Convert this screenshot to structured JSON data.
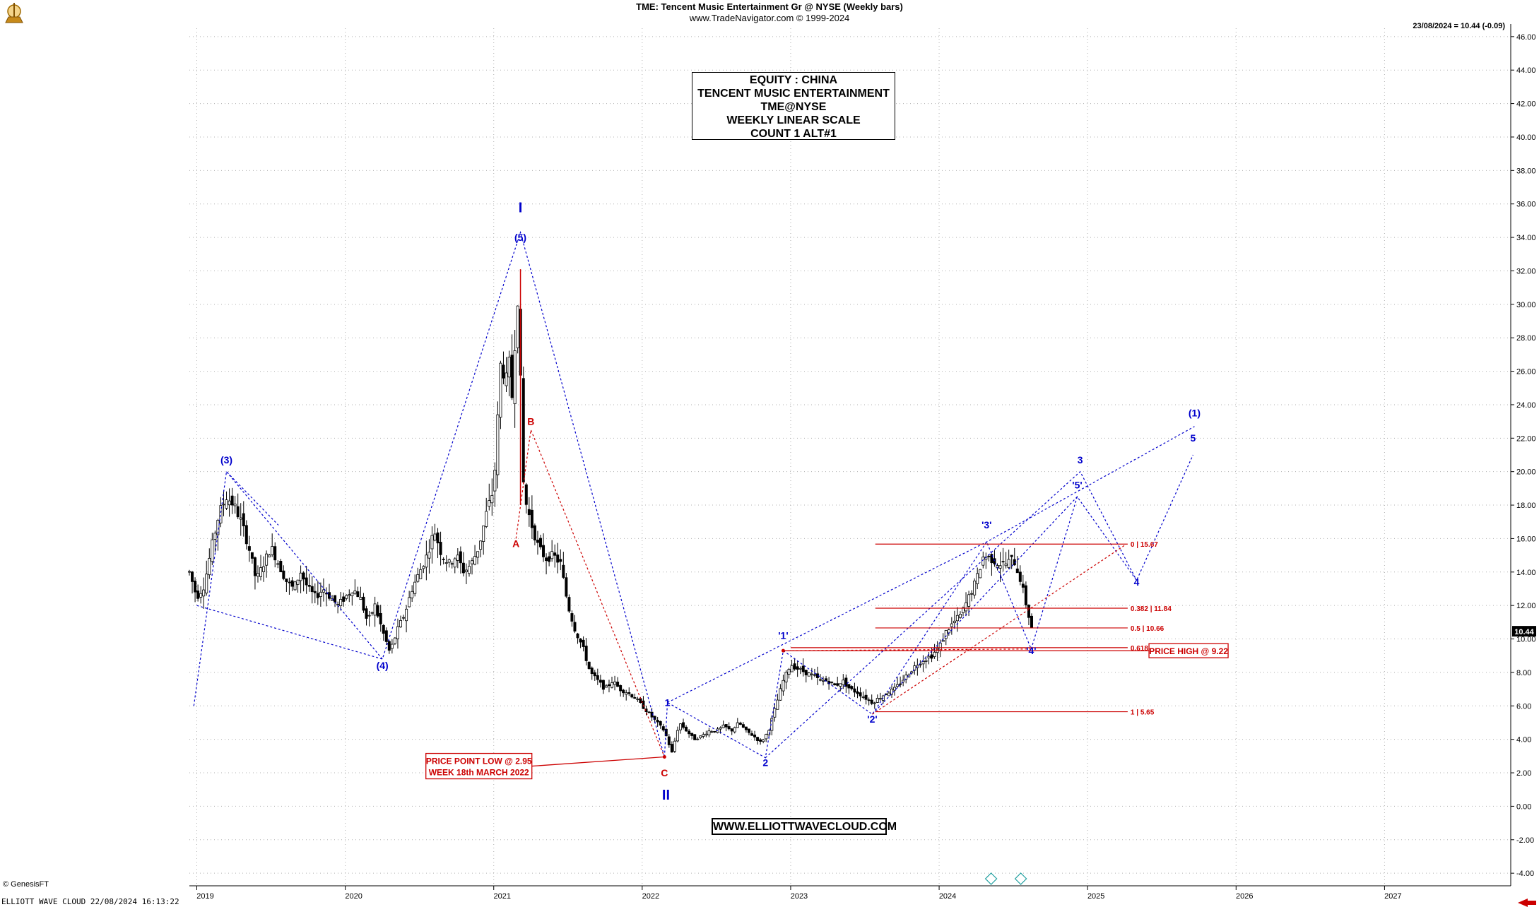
{
  "header": {
    "title": "TME:  Tencent Music Entertainment Gr @ NYSE  (Weekly bars)",
    "subtitle": "www.TradeNavigator.com © 1999-2024",
    "last_value": "23/08/2024 = 10.44 (-0.09)",
    "last_price_tag": "10.44"
  },
  "info_box": {
    "lines": [
      "EQUITY : CHINA",
      "TENCENT MUSIC ENTERTAINMENT",
      "TME@NYSE",
      "WEEKLY LINEAR SCALE",
      "COUNT 1 ALT#1"
    ]
  },
  "website": "WWW.ELLIOTTWAVECLOUD.COM",
  "footer": {
    "vendor": "© GenesisFT",
    "stamp": "ELLIOTT WAVE CLOUD  22/08/2024 16:13:22"
  },
  "colors": {
    "candle": "#000000",
    "wave_blue": "#0000cc",
    "wave_red": "#cc0000",
    "grid": "#b0b0b0",
    "fib": "#cc0000"
  },
  "chart_data": {
    "type": "candlestick",
    "x_ticks": [
      "2019",
      "2020",
      "2021",
      "2022",
      "2023",
      "2024",
      "2025",
      "2026",
      "2027"
    ],
    "y_ticks": [
      "46.00",
      "44.00",
      "42.00",
      "40.00",
      "38.00",
      "36.00",
      "34.00",
      "32.00",
      "30.00",
      "28.00",
      "26.00",
      "24.00",
      "22.00",
      "20.00",
      "18.00",
      "16.00",
      "14.00",
      "12.00",
      "10.00",
      "8.00",
      "6.00",
      "4.00",
      "2.00",
      "0.00",
      "-2.00",
      "-4.00"
    ],
    "ylim": [
      -4.5,
      46.5
    ],
    "xlim": [
      2018.95,
      2027.85
    ],
    "grid": true,
    "price_path": [
      [
        2018.95,
        14.0
      ],
      [
        2019.0,
        12.5
      ],
      [
        2019.05,
        13.2
      ],
      [
        2019.1,
        15.5
      ],
      [
        2019.15,
        17.5
      ],
      [
        2019.2,
        18.5
      ],
      [
        2019.25,
        18.0
      ],
      [
        2019.3,
        17.0
      ],
      [
        2019.35,
        15.5
      ],
      [
        2019.4,
        13.5
      ],
      [
        2019.45,
        14.5
      ],
      [
        2019.5,
        15.5
      ],
      [
        2019.55,
        14.5
      ],
      [
        2019.6,
        13.5
      ],
      [
        2019.65,
        13.0
      ],
      [
        2019.7,
        14.0
      ],
      [
        2019.75,
        13.0
      ],
      [
        2019.8,
        12.5
      ],
      [
        2019.85,
        13.0
      ],
      [
        2019.9,
        12.5
      ],
      [
        2019.95,
        12.0
      ],
      [
        2020.0,
        12.5
      ],
      [
        2020.05,
        13.0
      ],
      [
        2020.1,
        12.5
      ],
      [
        2020.15,
        11.0
      ],
      [
        2020.2,
        12.0
      ],
      [
        2020.25,
        10.5
      ],
      [
        2020.3,
        9.2
      ],
      [
        2020.35,
        10.5
      ],
      [
        2020.4,
        11.5
      ],
      [
        2020.45,
        13.0
      ],
      [
        2020.5,
        14.0
      ],
      [
        2020.55,
        15.0
      ],
      [
        2020.6,
        16.5
      ],
      [
        2020.65,
        15.0
      ],
      [
        2020.7,
        14.5
      ],
      [
        2020.75,
        15.0
      ],
      [
        2020.8,
        14.0
      ],
      [
        2020.85,
        14.5
      ],
      [
        2020.9,
        15.5
      ],
      [
        2020.95,
        17.5
      ],
      [
        2021.0,
        19.0
      ],
      [
        2021.02,
        22.0
      ],
      [
        2021.05,
        27.0
      ],
      [
        2021.08,
        25.0
      ],
      [
        2021.1,
        27.0
      ],
      [
        2021.12,
        24.0
      ],
      [
        2021.15,
        29.0
      ],
      [
        2021.17,
        31.5
      ],
      [
        2021.19,
        20.0
      ],
      [
        2021.22,
        18.0
      ],
      [
        2021.25,
        17.0
      ],
      [
        2021.3,
        15.5
      ],
      [
        2021.35,
        14.8
      ],
      [
        2021.4,
        15.0
      ],
      [
        2021.45,
        14.5
      ],
      [
        2021.5,
        12.0
      ],
      [
        2021.55,
        10.5
      ],
      [
        2021.6,
        9.5
      ],
      [
        2021.65,
        8.0
      ],
      [
        2021.7,
        7.5
      ],
      [
        2021.75,
        7.0
      ],
      [
        2021.8,
        7.5
      ],
      [
        2021.85,
        7.0
      ],
      [
        2021.9,
        6.8
      ],
      [
        2021.95,
        6.5
      ],
      [
        2022.0,
        6.0
      ],
      [
        2022.05,
        5.5
      ],
      [
        2022.1,
        5.0
      ],
      [
        2022.15,
        4.5
      ],
      [
        2022.2,
        3.2
      ],
      [
        2022.25,
        5.0
      ],
      [
        2022.3,
        4.5
      ],
      [
        2022.35,
        4.0
      ],
      [
        2022.4,
        4.2
      ],
      [
        2022.45,
        4.5
      ],
      [
        2022.5,
        4.5
      ],
      [
        2022.55,
        4.8
      ],
      [
        2022.6,
        4.5
      ],
      [
        2022.65,
        5.0
      ],
      [
        2022.7,
        4.5
      ],
      [
        2022.75,
        4.2
      ],
      [
        2022.8,
        3.8
      ],
      [
        2022.85,
        4.5
      ],
      [
        2022.9,
        6.0
      ],
      [
        2022.95,
        7.5
      ],
      [
        2023.0,
        8.5
      ],
      [
        2023.05,
        8.2
      ],
      [
        2023.1,
        8.0
      ],
      [
        2023.15,
        7.8
      ],
      [
        2023.2,
        7.5
      ],
      [
        2023.25,
        7.5
      ],
      [
        2023.3,
        7.2
      ],
      [
        2023.35,
        7.5
      ],
      [
        2023.4,
        7.0
      ],
      [
        2023.45,
        6.8
      ],
      [
        2023.5,
        6.5
      ],
      [
        2023.55,
        6.2
      ],
      [
        2023.6,
        6.5
      ],
      [
        2023.65,
        6.8
      ],
      [
        2023.7,
        7.0
      ],
      [
        2023.75,
        7.5
      ],
      [
        2023.8,
        8.0
      ],
      [
        2023.85,
        8.5
      ],
      [
        2023.9,
        8.8
      ],
      [
        2023.95,
        9.0
      ],
      [
        2024.0,
        9.5
      ],
      [
        2024.05,
        10.5
      ],
      [
        2024.1,
        11.0
      ],
      [
        2024.15,
        11.5
      ],
      [
        2024.2,
        12.5
      ],
      [
        2024.25,
        13.5
      ],
      [
        2024.3,
        15.0
      ],
      [
        2024.35,
        14.8
      ],
      [
        2024.4,
        14.5
      ],
      [
        2024.45,
        14.5
      ],
      [
        2024.5,
        14.8
      ],
      [
        2024.55,
        13.5
      ],
      [
        2024.6,
        11.5
      ],
      [
        2024.63,
        10.44
      ]
    ],
    "wave_labels": [
      {
        "label": "I",
        "x": 2021.18,
        "y": 35.5,
        "color": "blue",
        "size": "large"
      },
      {
        "label": "(5)",
        "x": 2021.18,
        "y": 33.8,
        "color": "blue"
      },
      {
        "label": "(3)",
        "x": 2019.2,
        "y": 20.5,
        "color": "blue"
      },
      {
        "label": "(4)",
        "x": 2020.25,
        "y": 8.2,
        "color": "blue"
      },
      {
        "label": "B",
        "x": 2021.25,
        "y": 22.8,
        "color": "red"
      },
      {
        "label": "A",
        "x": 2021.15,
        "y": 15.5,
        "color": "red"
      },
      {
        "label": "C",
        "x": 2022.15,
        "y": 1.8,
        "color": "red"
      },
      {
        "label": "II",
        "x": 2022.16,
        "y": 0.4,
        "color": "blue",
        "size": "large"
      },
      {
        "label": "1",
        "x": 2022.17,
        "y": 6.0,
        "color": "blue"
      },
      {
        "label": "2",
        "x": 2022.83,
        "y": 2.4,
        "color": "blue"
      },
      {
        "label": "'1'",
        "x": 2022.95,
        "y": 10.0,
        "color": "blue"
      },
      {
        "label": "'2'",
        "x": 2023.55,
        "y": 5.0,
        "color": "blue"
      },
      {
        "label": "'3'",
        "x": 2024.32,
        "y": 16.6,
        "color": "blue"
      },
      {
        "label": "'4'",
        "x": 2024.62,
        "y": 9.1,
        "color": "blue"
      },
      {
        "label": "'5'",
        "x": 2024.93,
        "y": 19.0,
        "color": "blue"
      },
      {
        "label": "3",
        "x": 2024.95,
        "y": 20.5,
        "color": "blue"
      },
      {
        "label": "4",
        "x": 2025.33,
        "y": 13.2,
        "color": "blue"
      },
      {
        "label": "5",
        "x": 2025.71,
        "y": 21.8,
        "color": "blue"
      },
      {
        "label": "(1)",
        "x": 2025.72,
        "y": 23.3,
        "color": "blue"
      }
    ],
    "blue_lines": [
      [
        [
          2018.98,
          6.0
        ],
        [
          2019.2,
          20.0
        ],
        [
          2019.55,
          16.8
        ]
      ],
      [
        [
          2019.2,
          20.0
        ],
        [
          2020.25,
          8.8
        ],
        [
          2021.18,
          34.3
        ],
        [
          2022.15,
          2.95
        ]
      ],
      [
        [
          2019.0,
          12.0
        ],
        [
          2020.25,
          8.8
        ]
      ],
      [
        [
          2022.15,
          2.95
        ],
        [
          2022.17,
          6.2
        ],
        [
          2022.83,
          2.9
        ],
        [
          2022.95,
          9.3
        ],
        [
          2023.55,
          5.5
        ],
        [
          2024.32,
          15.8
        ],
        [
          2024.62,
          9.4
        ],
        [
          2024.93,
          18.5
        ],
        [
          2025.33,
          13.5
        ],
        [
          2025.71,
          21.0
        ]
      ],
      [
        [
          2022.83,
          2.9
        ],
        [
          2024.95,
          20.0
        ],
        [
          2025.33,
          13.5
        ]
      ],
      [
        [
          2022.17,
          6.2
        ],
        [
          2024.32,
          15.8
        ],
        [
          2025.72,
          22.7
        ]
      ],
      [
        [
          2023.55,
          5.5
        ],
        [
          2024.93,
          18.5
        ]
      ]
    ],
    "red_lines": [
      [
        [
          2021.15,
          16.0
        ],
        [
          2021.25,
          22.5
        ],
        [
          2022.15,
          2.95
        ]
      ],
      [
        [
          2023.55,
          5.5
        ],
        [
          2025.25,
          15.6
        ]
      ],
      [
        [
          2022.95,
          9.3
        ],
        [
          2024.62,
          9.4
        ]
      ]
    ],
    "fib_levels": [
      {
        "label": "0 | 15.67",
        "y": 15.67,
        "x0": 2023.57,
        "x1": 2025.27
      },
      {
        "label": "0.382 | 11.84",
        "y": 11.84,
        "x0": 2023.57,
        "x1": 2025.27
      },
      {
        "label": "0.5 | 10.66",
        "y": 10.66,
        "x0": 2023.57,
        "x1": 2025.27
      },
      {
        "label": "0.618 | 9.48",
        "y": 9.48,
        "x0": 2023.0,
        "x1": 2025.27
      },
      {
        "label": "1 | 5.65",
        "y": 5.65,
        "x0": 2023.57,
        "x1": 2025.27
      }
    ],
    "annotations": [
      {
        "text": "PRICE POINT LOW @ 2.95",
        "text2": "WEEK 18th MARCH 2022",
        "x": 2020.9,
        "y": 2.4,
        "arrow_to": [
          2022.15,
          2.95
        ]
      },
      {
        "text": "PRICE HIGH @ 9.22",
        "x": 2025.68,
        "y": 9.3,
        "arrow_to": [
          2022.95,
          9.3
        ]
      }
    ]
  }
}
